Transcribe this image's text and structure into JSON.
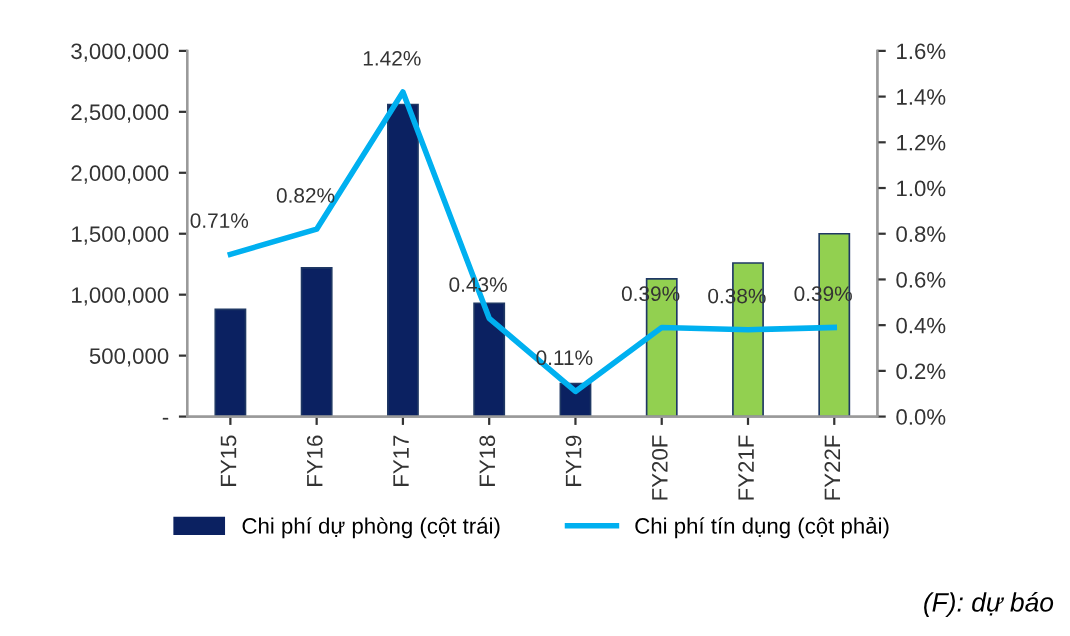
{
  "chart_data": {
    "type": "bar",
    "categories": [
      "FY15",
      "FY16",
      "FY17",
      "FY18",
      "FY19",
      "FY20F",
      "FY21F",
      "FY22F"
    ],
    "series": [
      {
        "name": "Chi phí dự phòng (cột trái)",
        "color": "#0b2161",
        "colors": [
          "#0b2161",
          "#0b2161",
          "#0b2161",
          "#0b2161",
          "#0b2161",
          "#92d050",
          "#92d050",
          "#92d050"
        ],
        "values": [
          880000,
          1220000,
          2560000,
          930000,
          270000,
          1130000,
          1260000,
          1500000
        ]
      },
      {
        "name": "Chi phí tín dụng (cột phải)",
        "type": "line",
        "axis": "y2",
        "color": "#00b0f0",
        "values": [
          0.71,
          0.82,
          1.42,
          0.43,
          0.11,
          0.39,
          0.38,
          0.39
        ],
        "value_labels": [
          "0.71%",
          "0.82%",
          "1.42%",
          "0.43%",
          "0.11%",
          "0.39%",
          "0.38%",
          "0.39%"
        ]
      }
    ],
    "ylim": [
      0,
      3000000
    ],
    "yticks": [
      {
        "value": 0,
        "label": "-"
      },
      {
        "value": 500000,
        "label": "500,000"
      },
      {
        "value": 1000000,
        "label": "1,000,000"
      },
      {
        "value": 1500000,
        "label": "1,500,000"
      },
      {
        "value": 2000000,
        "label": "2,000,000"
      },
      {
        "value": 2500000,
        "label": "2,500,000"
      },
      {
        "value": 3000000,
        "label": "3,000,000"
      }
    ],
    "y2lim": [
      0,
      1.6
    ],
    "y2ticks": [
      {
        "value": 0,
        "label": "0.0%"
      },
      {
        "value": 0.2,
        "label": "0.2%"
      },
      {
        "value": 0.4,
        "label": "0.4%"
      },
      {
        "value": 0.6,
        "label": "0.6%"
      },
      {
        "value": 0.8,
        "label": "0.8%"
      },
      {
        "value": 1.0,
        "label": "1.0%"
      },
      {
        "value": 1.2,
        "label": "1.2%"
      },
      {
        "value": 1.4,
        "label": "1.4%"
      },
      {
        "value": 1.6,
        "label": "1.6%"
      }
    ],
    "grid": false,
    "legend": "bottom",
    "marker": "none",
    "annotations": [
      "(F): dự báo"
    ]
  }
}
